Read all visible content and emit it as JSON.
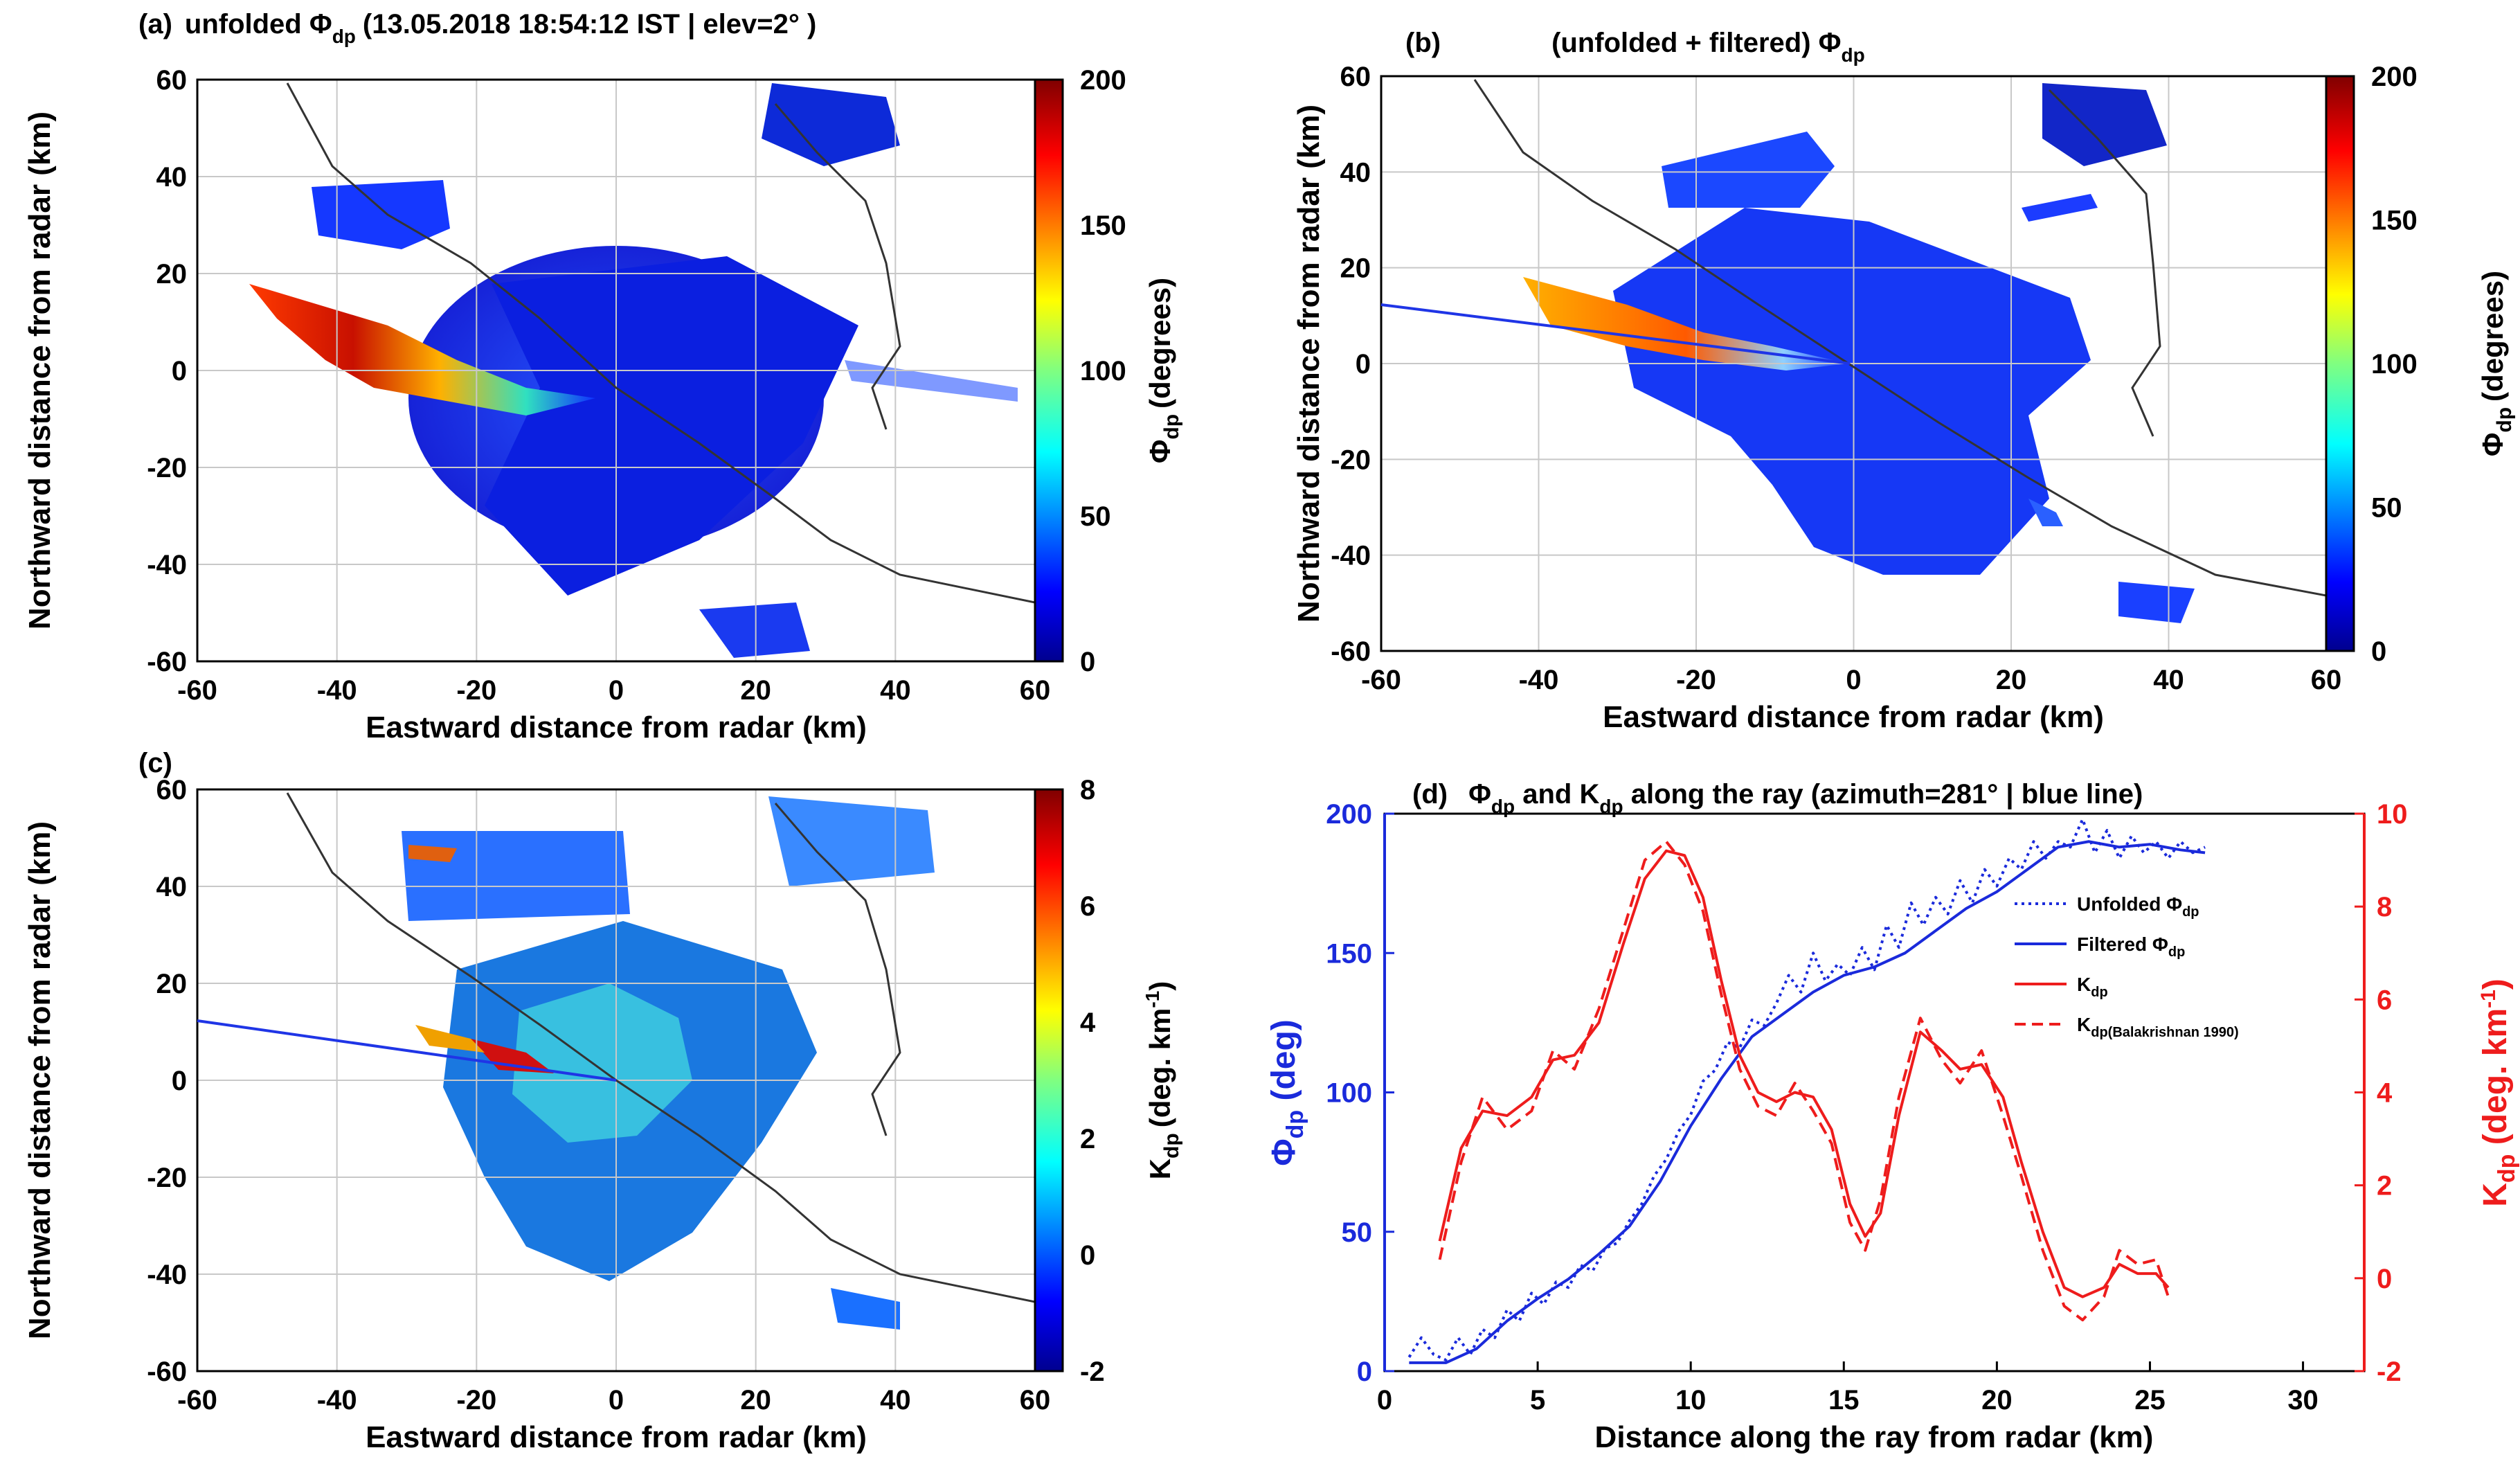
{
  "chart_data": [
    {
      "panel": "(a)",
      "type": "heatmap",
      "title_prefix": "unfolded Φ",
      "title_sub": "dp",
      "title_suffix": "(13.05.2018 18:54:12 IST  |  elev=2° )",
      "xlabel": "Eastward distance from radar (km)",
      "ylabel": "Northward distance from radar (km)",
      "xlim": [
        -60,
        60
      ],
      "ylim": [
        -60,
        60
      ],
      "xticks": [
        "-60",
        "-40",
        "-20",
        "0",
        "20",
        "40",
        "60"
      ],
      "yticks": [
        "60",
        "40",
        "20",
        "0",
        "-20",
        "-40",
        "-60"
      ],
      "colorbar": {
        "label_main": "Φ",
        "label_sub": "dp",
        "label_rest": "(degrees)",
        "range": [
          0,
          200
        ],
        "ticks": [
          "200",
          "150",
          "100",
          "50",
          "0"
        ]
      },
      "grid": true
    },
    {
      "panel": "(b)",
      "type": "heatmap",
      "title_prefix": "(unfolded + filtered) Φ",
      "title_sub": "dp",
      "title_suffix": "",
      "xlabel": "Eastward distance from radar (km)",
      "ylabel": "Northward distance from radar (km)",
      "xlim": [
        -60,
        60
      ],
      "ylim": [
        -60,
        60
      ],
      "xticks": [
        "-60",
        "-40",
        "-20",
        "0",
        "20",
        "40",
        "60"
      ],
      "yticks": [
        "60",
        "40",
        "20",
        "0",
        "-20",
        "-40",
        "-60"
      ],
      "colorbar": {
        "label_main": "Φ",
        "label_sub": "dp",
        "label_rest": "(degrees)",
        "range": [
          0,
          200
        ],
        "ticks": [
          "200",
          "150",
          "100",
          "50",
          "0"
        ]
      },
      "ray_azimuth_deg": 281,
      "grid": true
    },
    {
      "panel": "(c)",
      "type": "heatmap",
      "title_prefix": "",
      "title_sub": "",
      "title_suffix": "",
      "xlabel": "Eastward distance from radar (km)",
      "ylabel": "Northward distance from radar (km)",
      "xlim": [
        -60,
        60
      ],
      "ylim": [
        -60,
        60
      ],
      "xticks": [
        "-60",
        "-40",
        "-20",
        "0",
        "20",
        "40",
        "60"
      ],
      "yticks": [
        "60",
        "40",
        "20",
        "0",
        "-20",
        "-40",
        "-60"
      ],
      "colorbar": {
        "label_main": "K",
        "label_sub": "dp",
        "label_rest": "(deg. km",
        "label_sup": "-1",
        "label_end": ")",
        "range": [
          -2,
          8
        ],
        "ticks": [
          "8",
          "6",
          "4",
          "2",
          "0",
          "-2"
        ]
      },
      "ray_azimuth_deg": 281,
      "grid": true
    },
    {
      "panel": "(d)",
      "type": "line",
      "title_a": "Φ",
      "title_a_sub": "dp",
      "title_b": " and K",
      "title_b_sub": "dp",
      "title_c": " along the ray (azimuth=281° | blue line)",
      "xlabel": "Distance along the ray from radar (km)",
      "ylabel_left": "Φ",
      "ylabel_left_sub": "dp",
      "ylabel_left_rest": " (deg)",
      "ylabel_right": "K",
      "ylabel_right_sub": "dp",
      "ylabel_right_rest": " (deg.  km",
      "ylabel_right_sup": "-1",
      "ylabel_right_end": ")",
      "xlim": [
        0,
        32
      ],
      "ylim_left": [
        0,
        200
      ],
      "ylim_right": [
        -2,
        10
      ],
      "xticks": [
        0,
        5,
        10,
        15,
        20,
        25,
        30
      ],
      "yticks_left": [
        0,
        50,
        100,
        150,
        200
      ],
      "yticks_right": [
        -2,
        0,
        2,
        4,
        6,
        8,
        10
      ],
      "legend": [
        {
          "label": "Unfolded  Φ",
          "sub": "dp",
          "color": "#1a2adb",
          "style": "dotted"
        },
        {
          "label": "Filtered Φ",
          "sub": "dp",
          "color": "#1a2adb",
          "style": "solid"
        },
        {
          "label": "K",
          "sub": "dp",
          "color": "#ee1c1c",
          "style": "solid"
        },
        {
          "label": "K",
          "sub": "dp(Balakrishnan 1990)",
          "color": "#ee1c1c",
          "style": "dashed"
        }
      ],
      "series": [
        {
          "name": "Filtered Φdp",
          "axis": "left",
          "x": [
            0.8,
            2.0,
            3.0,
            4.0,
            5.0,
            6.0,
            7.0,
            8.0,
            9.0,
            10.0,
            11.0,
            12.0,
            13.0,
            14.0,
            15.0,
            16.0,
            17.0,
            18.0,
            19.0,
            20.0,
            21.0,
            22.0,
            23.0,
            24.0,
            25.0,
            26.0,
            26.8
          ],
          "y": [
            3,
            3,
            8,
            18,
            26,
            33,
            42,
            52,
            68,
            88,
            105,
            120,
            128,
            136,
            142,
            145,
            150,
            158,
            166,
            172,
            180,
            188,
            190,
            188,
            189,
            187,
            186
          ]
        },
        {
          "name": "Unfolded Φdp",
          "axis": "left",
          "x": [
            0.8,
            1.2,
            1.6,
            2.0,
            2.4,
            2.8,
            3.2,
            3.6,
            4.0,
            4.4,
            4.8,
            5.2,
            5.6,
            6.0,
            6.4,
            6.8,
            7.2,
            7.6,
            8.0,
            8.4,
            8.8,
            9.2,
            9.6,
            10.0,
            10.4,
            10.8,
            11.2,
            11.6,
            12.0,
            12.4,
            12.8,
            13.2,
            13.6,
            14.0,
            14.4,
            14.8,
            15.2,
            15.6,
            16.0,
            16.4,
            16.8,
            17.2,
            17.6,
            18.0,
            18.4,
            18.8,
            19.2,
            19.6,
            20.0,
            20.4,
            20.8,
            21.2,
            21.6,
            22.0,
            22.4,
            22.8,
            23.2,
            23.6,
            24.0,
            24.4,
            24.8,
            25.2,
            25.6,
            26.0,
            26.4,
            26.8
          ],
          "y": [
            5,
            12,
            6,
            4,
            12,
            6,
            15,
            12,
            22,
            18,
            28,
            24,
            32,
            30,
            38,
            36,
            44,
            46,
            54,
            60,
            70,
            76,
            86,
            92,
            104,
            108,
            118,
            116,
            126,
            124,
            132,
            142,
            136,
            150,
            140,
            146,
            142,
            152,
            144,
            160,
            152,
            168,
            160,
            170,
            164,
            176,
            168,
            180,
            174,
            184,
            180,
            190,
            184,
            190,
            188,
            198,
            186,
            194,
            184,
            192,
            186,
            190,
            184,
            190,
            186,
            188
          ]
        },
        {
          "name": "Kdp",
          "axis": "right",
          "x": [
            1.8,
            2.5,
            3.2,
            4.0,
            4.8,
            5.5,
            6.2,
            7.0,
            7.8,
            8.5,
            9.2,
            9.8,
            10.4,
            11.0,
            11.6,
            12.2,
            12.8,
            13.4,
            14.0,
            14.6,
            15.2,
            15.7,
            16.2,
            16.8,
            17.5,
            18.2,
            18.8,
            19.5,
            20.2,
            20.8,
            21.5,
            22.2,
            22.8,
            23.5,
            24.0,
            24.6,
            25.2,
            25.6
          ],
          "y": [
            0.8,
            2.8,
            3.6,
            3.5,
            3.9,
            4.7,
            4.8,
            5.5,
            7.2,
            8.6,
            9.2,
            9.1,
            8.2,
            6.4,
            4.8,
            4.0,
            3.8,
            4.0,
            3.9,
            3.2,
            1.6,
            0.9,
            1.4,
            3.5,
            5.3,
            4.9,
            4.5,
            4.6,
            3.9,
            2.5,
            1.0,
            -0.2,
            -0.4,
            -0.2,
            0.3,
            0.1,
            0.1,
            -0.2
          ]
        },
        {
          "name": "Kdp (Balakrishnan 1990)",
          "axis": "right",
          "x": [
            1.8,
            2.5,
            3.2,
            4.0,
            4.8,
            5.5,
            6.2,
            7.0,
            7.8,
            8.5,
            9.2,
            9.8,
            10.4,
            11.0,
            11.6,
            12.2,
            12.8,
            13.4,
            14.0,
            14.6,
            15.2,
            15.7,
            16.2,
            16.8,
            17.5,
            18.2,
            18.8,
            19.5,
            20.2,
            20.8,
            21.5,
            22.2,
            22.8,
            23.5,
            24.0,
            24.6,
            25.2,
            25.6
          ],
          "y": [
            0.4,
            2.5,
            3.9,
            3.2,
            3.6,
            4.9,
            4.5,
            5.8,
            7.5,
            9.0,
            9.4,
            8.9,
            7.9,
            6.1,
            4.5,
            3.7,
            3.5,
            4.2,
            3.6,
            2.9,
            1.2,
            0.6,
            1.7,
            3.9,
            5.6,
            4.7,
            4.2,
            4.9,
            3.5,
            2.2,
            0.6,
            -0.6,
            -0.9,
            -0.4,
            0.6,
            0.3,
            0.4,
            -0.4
          ]
        }
      ]
    }
  ]
}
